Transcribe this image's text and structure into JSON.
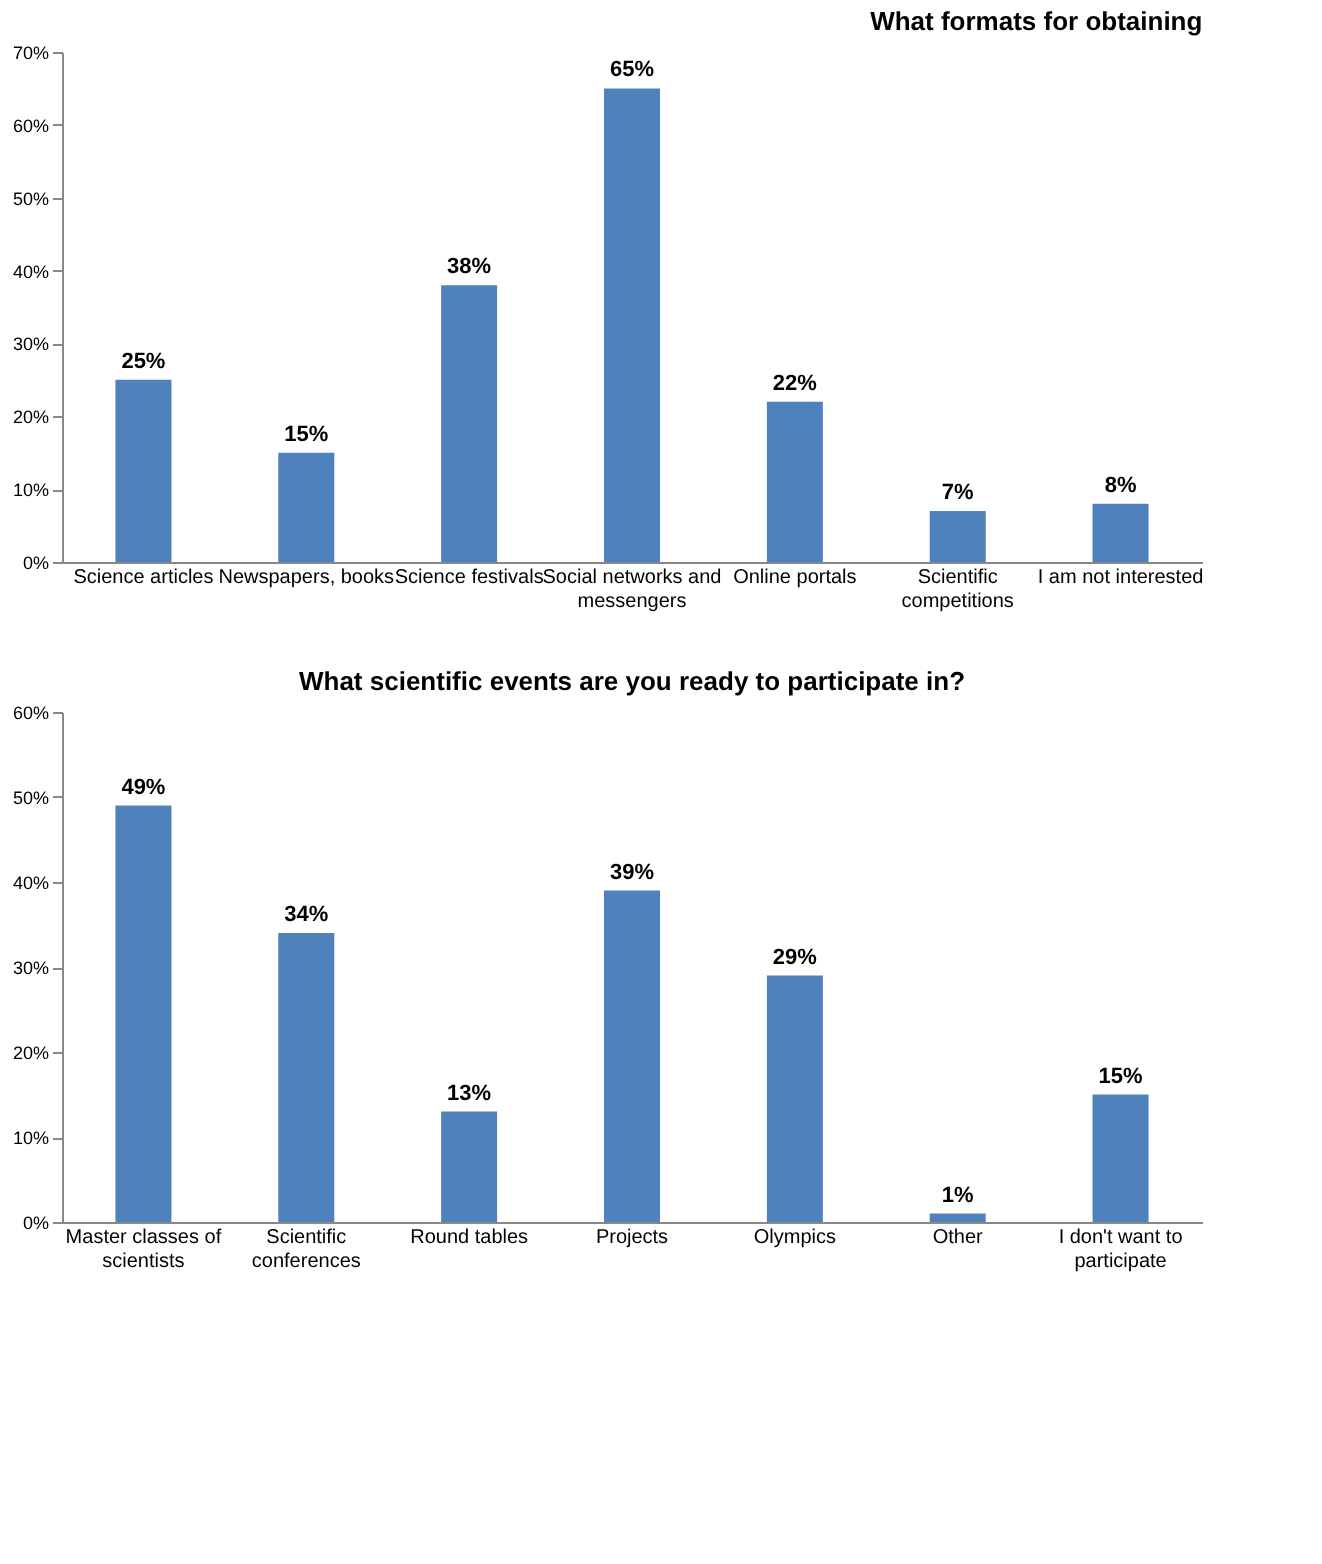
{
  "chart_data": [
    {
      "type": "bar",
      "title": "What formats for obtaining",
      "categories": [
        "Science articles",
        "Newspapers, books",
        "Science festivals",
        "Social networks and messengers",
        "Online portals",
        "Scientific competitions",
        "I am not interested"
      ],
      "values": [
        25,
        15,
        38,
        65,
        22,
        7,
        8
      ],
      "value_labels": [
        "25%",
        "15%",
        "38%",
        "65%",
        "22%",
        "7%",
        "8%"
      ],
      "color": "#4f81bd",
      "ylim": [
        0,
        70
      ],
      "yticks": [
        {
          "value": 0,
          "label": "0%"
        },
        {
          "value": 10,
          "label": "10%"
        },
        {
          "value": 20,
          "label": "20%"
        },
        {
          "value": 30,
          "label": "30%"
        },
        {
          "value": 40,
          "label": "40%"
        },
        {
          "value": 50,
          "label": "50%"
        },
        {
          "value": 60,
          "label": "60%"
        },
        {
          "value": 70,
          "label": "70%"
        }
      ],
      "grid": false
    },
    {
      "type": "bar",
      "title": "What scientific events are you ready to participate in?",
      "categories": [
        "Master classes of scientists",
        "Scientific conferences",
        "Round tables",
        "Projects",
        "Olympics",
        "Other",
        "I don't want to participate"
      ],
      "values": [
        49,
        34,
        13,
        39,
        29,
        1,
        15
      ],
      "value_labels": [
        "49%",
        "34%",
        "13%",
        "39%",
        "29%",
        "1%",
        "15%"
      ],
      "color": "#4f81bd",
      "ylim": [
        0,
        60
      ],
      "yticks": [
        {
          "value": 0,
          "label": "0%"
        },
        {
          "value": 10,
          "label": "10%"
        },
        {
          "value": 20,
          "label": "20%"
        },
        {
          "value": 30,
          "label": "30%"
        },
        {
          "value": 40,
          "label": "40%"
        },
        {
          "value": 50,
          "label": "50%"
        },
        {
          "value": 60,
          "label": "60%"
        }
      ],
      "grid": false
    }
  ]
}
